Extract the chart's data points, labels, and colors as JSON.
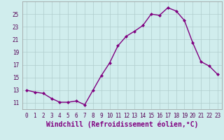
{
  "x": [
    0,
    1,
    2,
    3,
    4,
    5,
    6,
    7,
    8,
    9,
    10,
    11,
    12,
    13,
    14,
    15,
    16,
    17,
    18,
    19,
    20,
    21,
    22,
    23
  ],
  "y": [
    13.0,
    12.7,
    12.5,
    11.7,
    11.1,
    11.1,
    11.3,
    10.7,
    13.0,
    15.3,
    17.3,
    20.0,
    21.5,
    22.3,
    23.2,
    25.0,
    24.8,
    26.0,
    25.5,
    24.0,
    20.5,
    17.5,
    16.8,
    15.5
  ],
  "line_color": "#800080",
  "marker": "D",
  "marker_size": 2.0,
  "bg_color": "#d0eded",
  "grid_color": "#b0cccc",
  "xlabel": "Windchill (Refroidissement éolien,°C)",
  "xlabel_fontsize": 7,
  "ylim": [
    10.0,
    27.0
  ],
  "yticks": [
    11,
    13,
    15,
    17,
    19,
    21,
    23,
    25
  ],
  "xticks": [
    0,
    1,
    2,
    3,
    4,
    5,
    6,
    7,
    8,
    9,
    10,
    11,
    12,
    13,
    14,
    15,
    16,
    17,
    18,
    19,
    20,
    21,
    22,
    23
  ],
  "tick_fontsize": 5.5,
  "line_width": 1.0
}
